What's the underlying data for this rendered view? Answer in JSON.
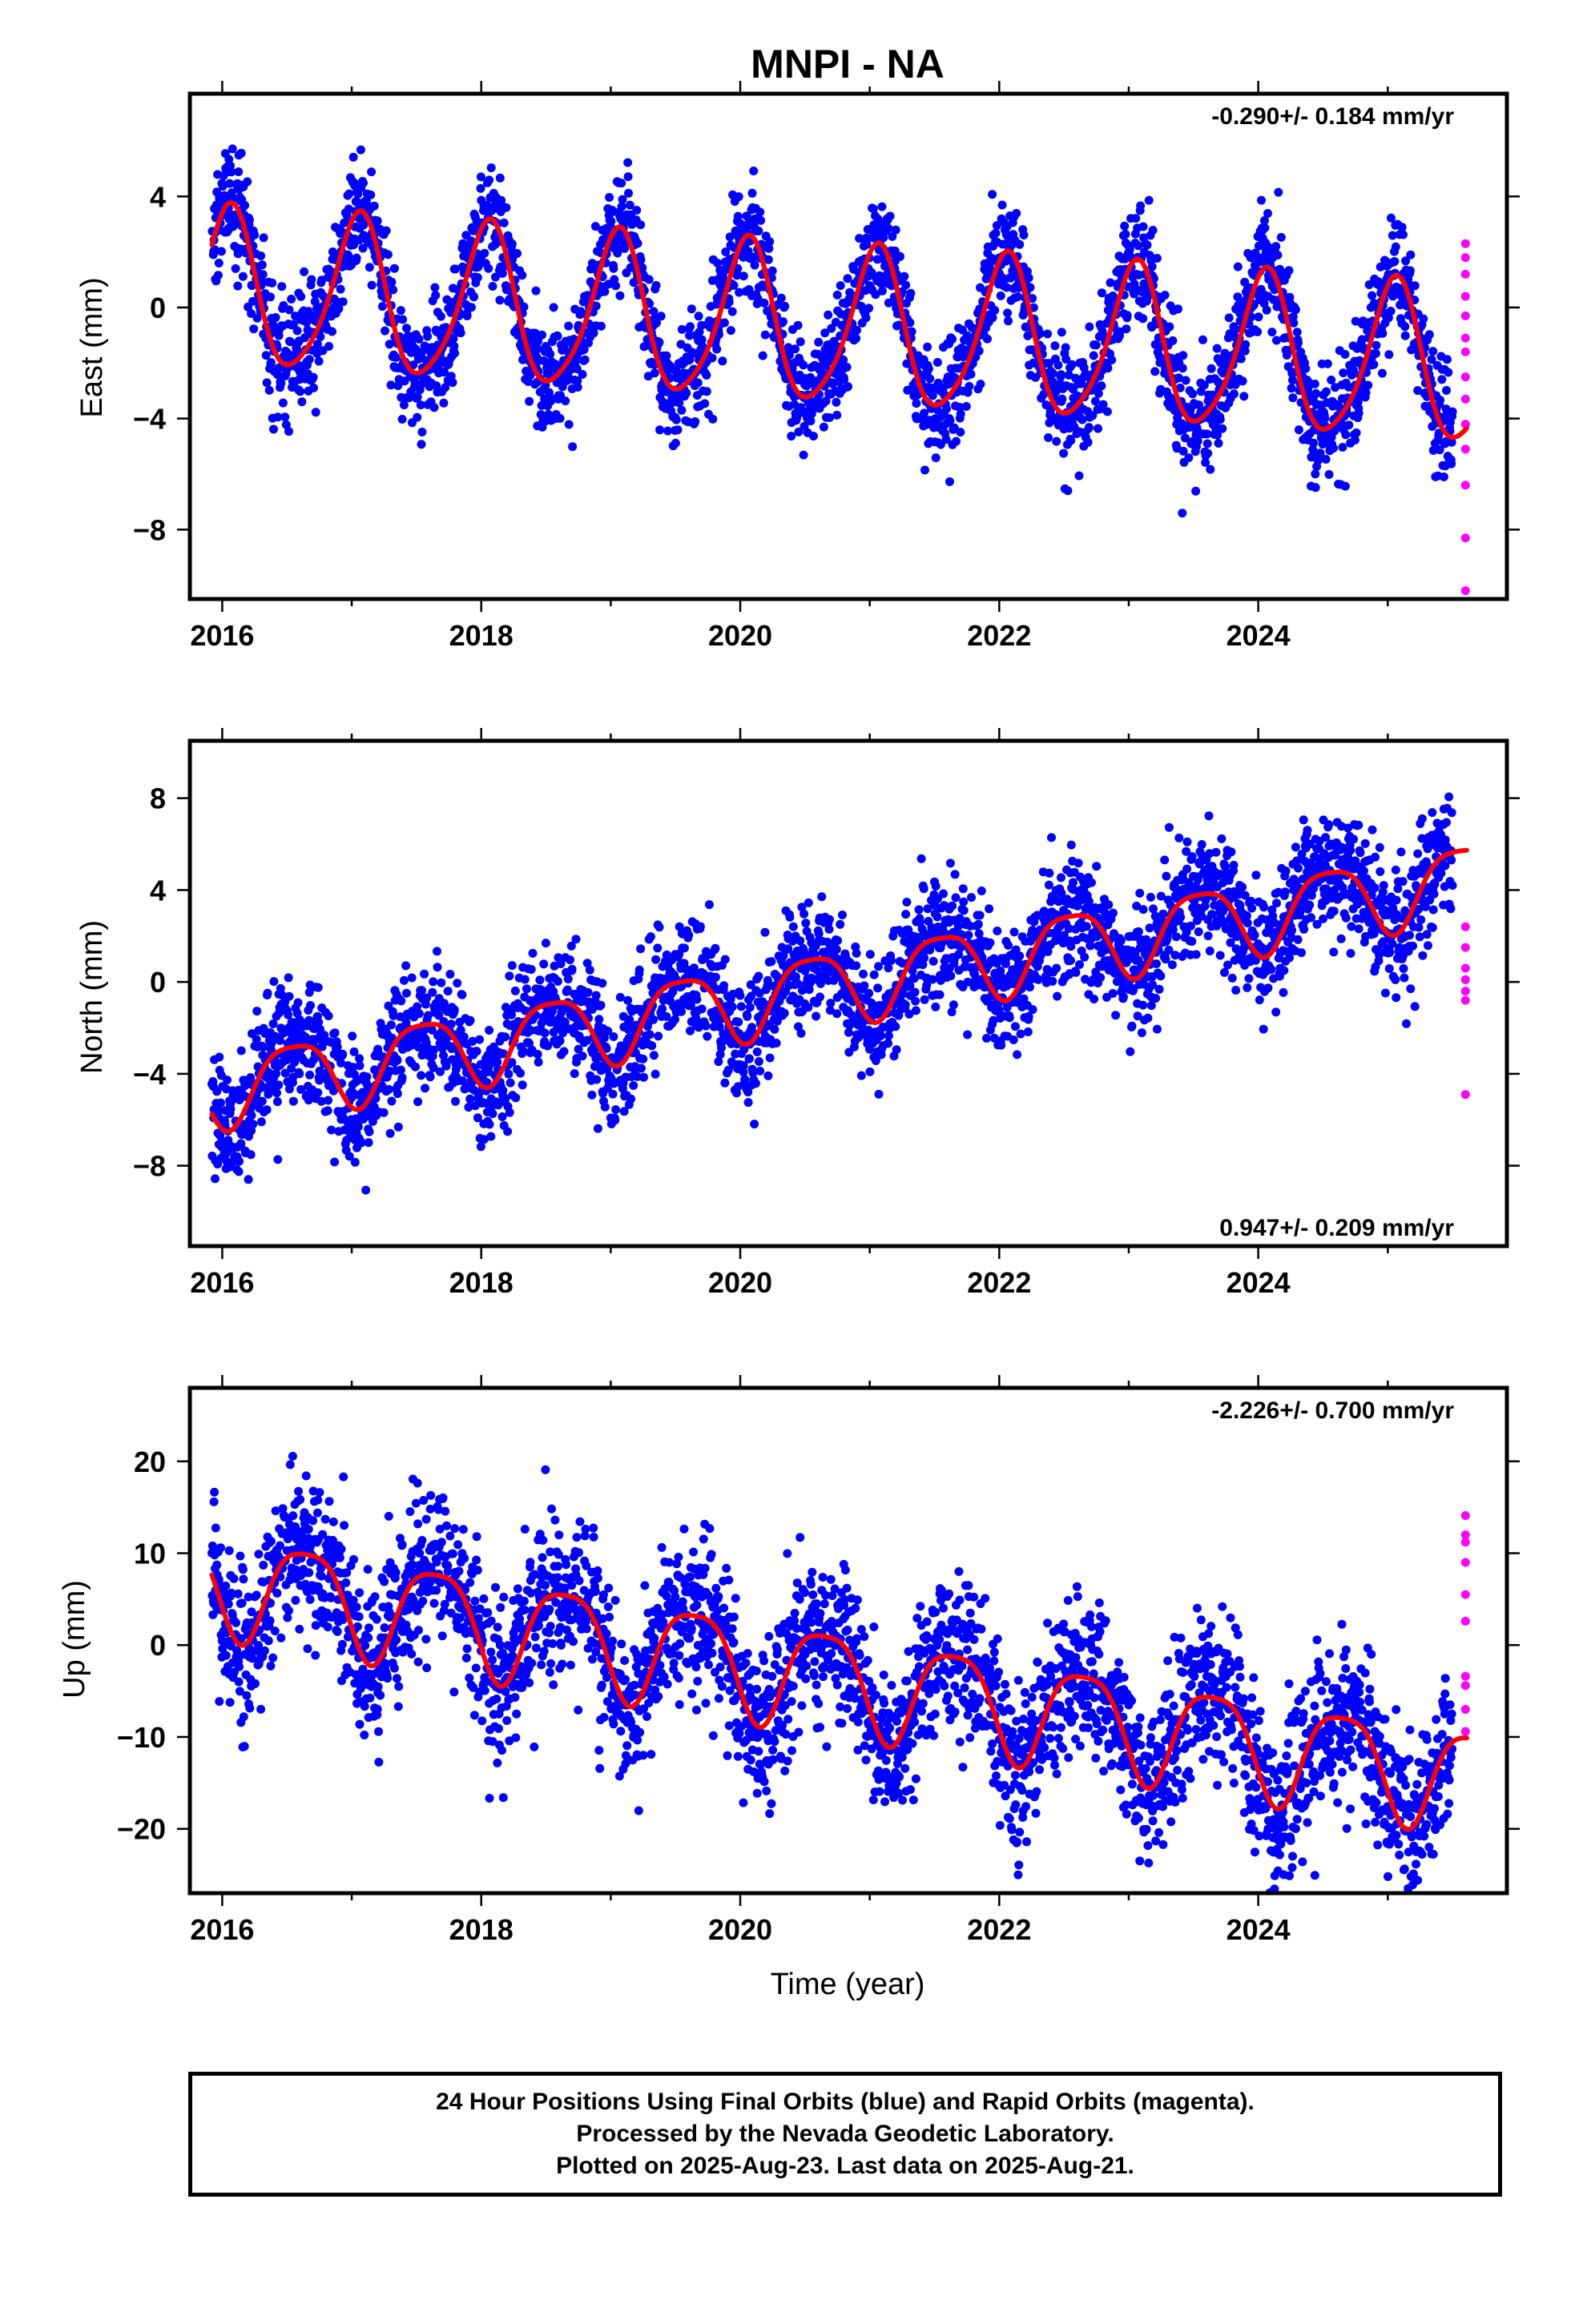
{
  "figure": {
    "title": "MNPI - NA",
    "xlabel": "Time (year)",
    "footer": [
      "24 Hour Positions Using Final Orbits (blue) and Rapid Orbits (magenta).",
      "Processed by the Nevada Geodetic Laboratory.",
      "Plotted on 2025-Aug-23. Last data on 2025-Aug-21."
    ],
    "colors": {
      "final": "#0000ff",
      "rapid": "#ff00ff",
      "fit": "#ff0000"
    }
  },
  "chart_data": [
    {
      "type": "scatter",
      "ylabel": "East (mm)",
      "rate_label": "-0.290+/- 0.184 mm/yr",
      "rate_position": "top-right",
      "xlim": [
        2015.75,
        2025.92
      ],
      "ylim": [
        -10.5,
        7.7
      ],
      "xticks": [
        2016,
        2018,
        2020,
        2022,
        2024
      ],
      "xtick_labels": [
        "2016",
        "2018",
        "2020",
        "2022",
        "2024"
      ],
      "yticks": [
        -8,
        -4,
        0,
        4
      ],
      "ytick_labels": [
        "−8",
        "−4",
        "0",
        "4"
      ],
      "trend": {
        "intercept_at_2016": 0.6,
        "slope_mm_per_yr": -0.29
      },
      "seasonal": {
        "annual_amp": 2.8,
        "annual_peak_frac": 0.05,
        "semiannual_amp": 0.45,
        "semiannual_peak_frac": 0.1
      },
      "scatter_sd": 1.0,
      "final_range": [
        2015.92,
        2025.5
      ],
      "rapid_x": 2025.6,
      "rapid_y": [
        2.3,
        1.8,
        1.2,
        0.4,
        -0.3,
        -1.1,
        -1.6,
        -2.5,
        -3.3,
        -4.2,
        -5.1,
        -6.4,
        -8.3,
        -10.2
      ]
    },
    {
      "type": "scatter",
      "ylabel": "North (mm)",
      "rate_label": "0.947+/- 0.209 mm/yr",
      "rate_position": "bottom-right",
      "xlim": [
        2015.75,
        2025.92
      ],
      "ylim": [
        -11.5,
        10.5
      ],
      "xticks": [
        2016,
        2018,
        2020,
        2022,
        2024
      ],
      "xtick_labels": [
        "2016",
        "2018",
        "2020",
        "2022",
        "2024"
      ],
      "yticks": [
        -8,
        -4,
        0,
        4,
        8
      ],
      "ytick_labels": [
        "−8",
        "−4",
        "0",
        "4",
        "8"
      ],
      "trend": {
        "intercept_at_2016": -4.6,
        "slope_mm_per_yr": 0.947
      },
      "seasonal": {
        "annual_amp": 1.6,
        "annual_peak_frac": 0.55,
        "semiannual_amp": 0.35,
        "semiannual_peak_frac": 0.3
      },
      "scatter_sd": 1.3,
      "final_range": [
        2015.92,
        2025.5
      ],
      "rapid_x": 2025.6,
      "rapid_y": [
        2.4,
        1.5,
        0.6,
        0.1,
        -0.4,
        -0.8,
        -4.9
      ]
    },
    {
      "type": "scatter",
      "ylabel": "Up (mm)",
      "rate_label": "-2.226+/- 0.700 mm/yr",
      "rate_position": "top-right",
      "xlim": [
        2015.75,
        2025.92
      ],
      "ylim": [
        -27,
        28
      ],
      "xticks": [
        2016,
        2018,
        2020,
        2022,
        2024
      ],
      "xtick_labels": [
        "2016",
        "2018",
        "2020",
        "2022",
        "2024"
      ],
      "yticks": [
        -20,
        -10,
        0,
        10,
        20
      ],
      "ytick_labels": [
        "−20",
        "−10",
        "0",
        "10",
        "20"
      ],
      "trend": {
        "intercept_at_2016": 7.0,
        "slope_mm_per_yr": -2.226
      },
      "seasonal": {
        "annual_amp": 5.5,
        "annual_peak_frac": 0.65,
        "semiannual_amp": 1.2,
        "semiannual_peak_frac": 0.4
      },
      "scatter_sd": 4.2,
      "final_range": [
        2015.92,
        2025.5
      ],
      "rapid_x": 2025.6,
      "rapid_y": [
        14.1,
        12.0,
        11.2,
        9.0,
        5.5,
        2.6,
        -3.4,
        -4.4,
        -7.0,
        -9.4
      ]
    }
  ]
}
